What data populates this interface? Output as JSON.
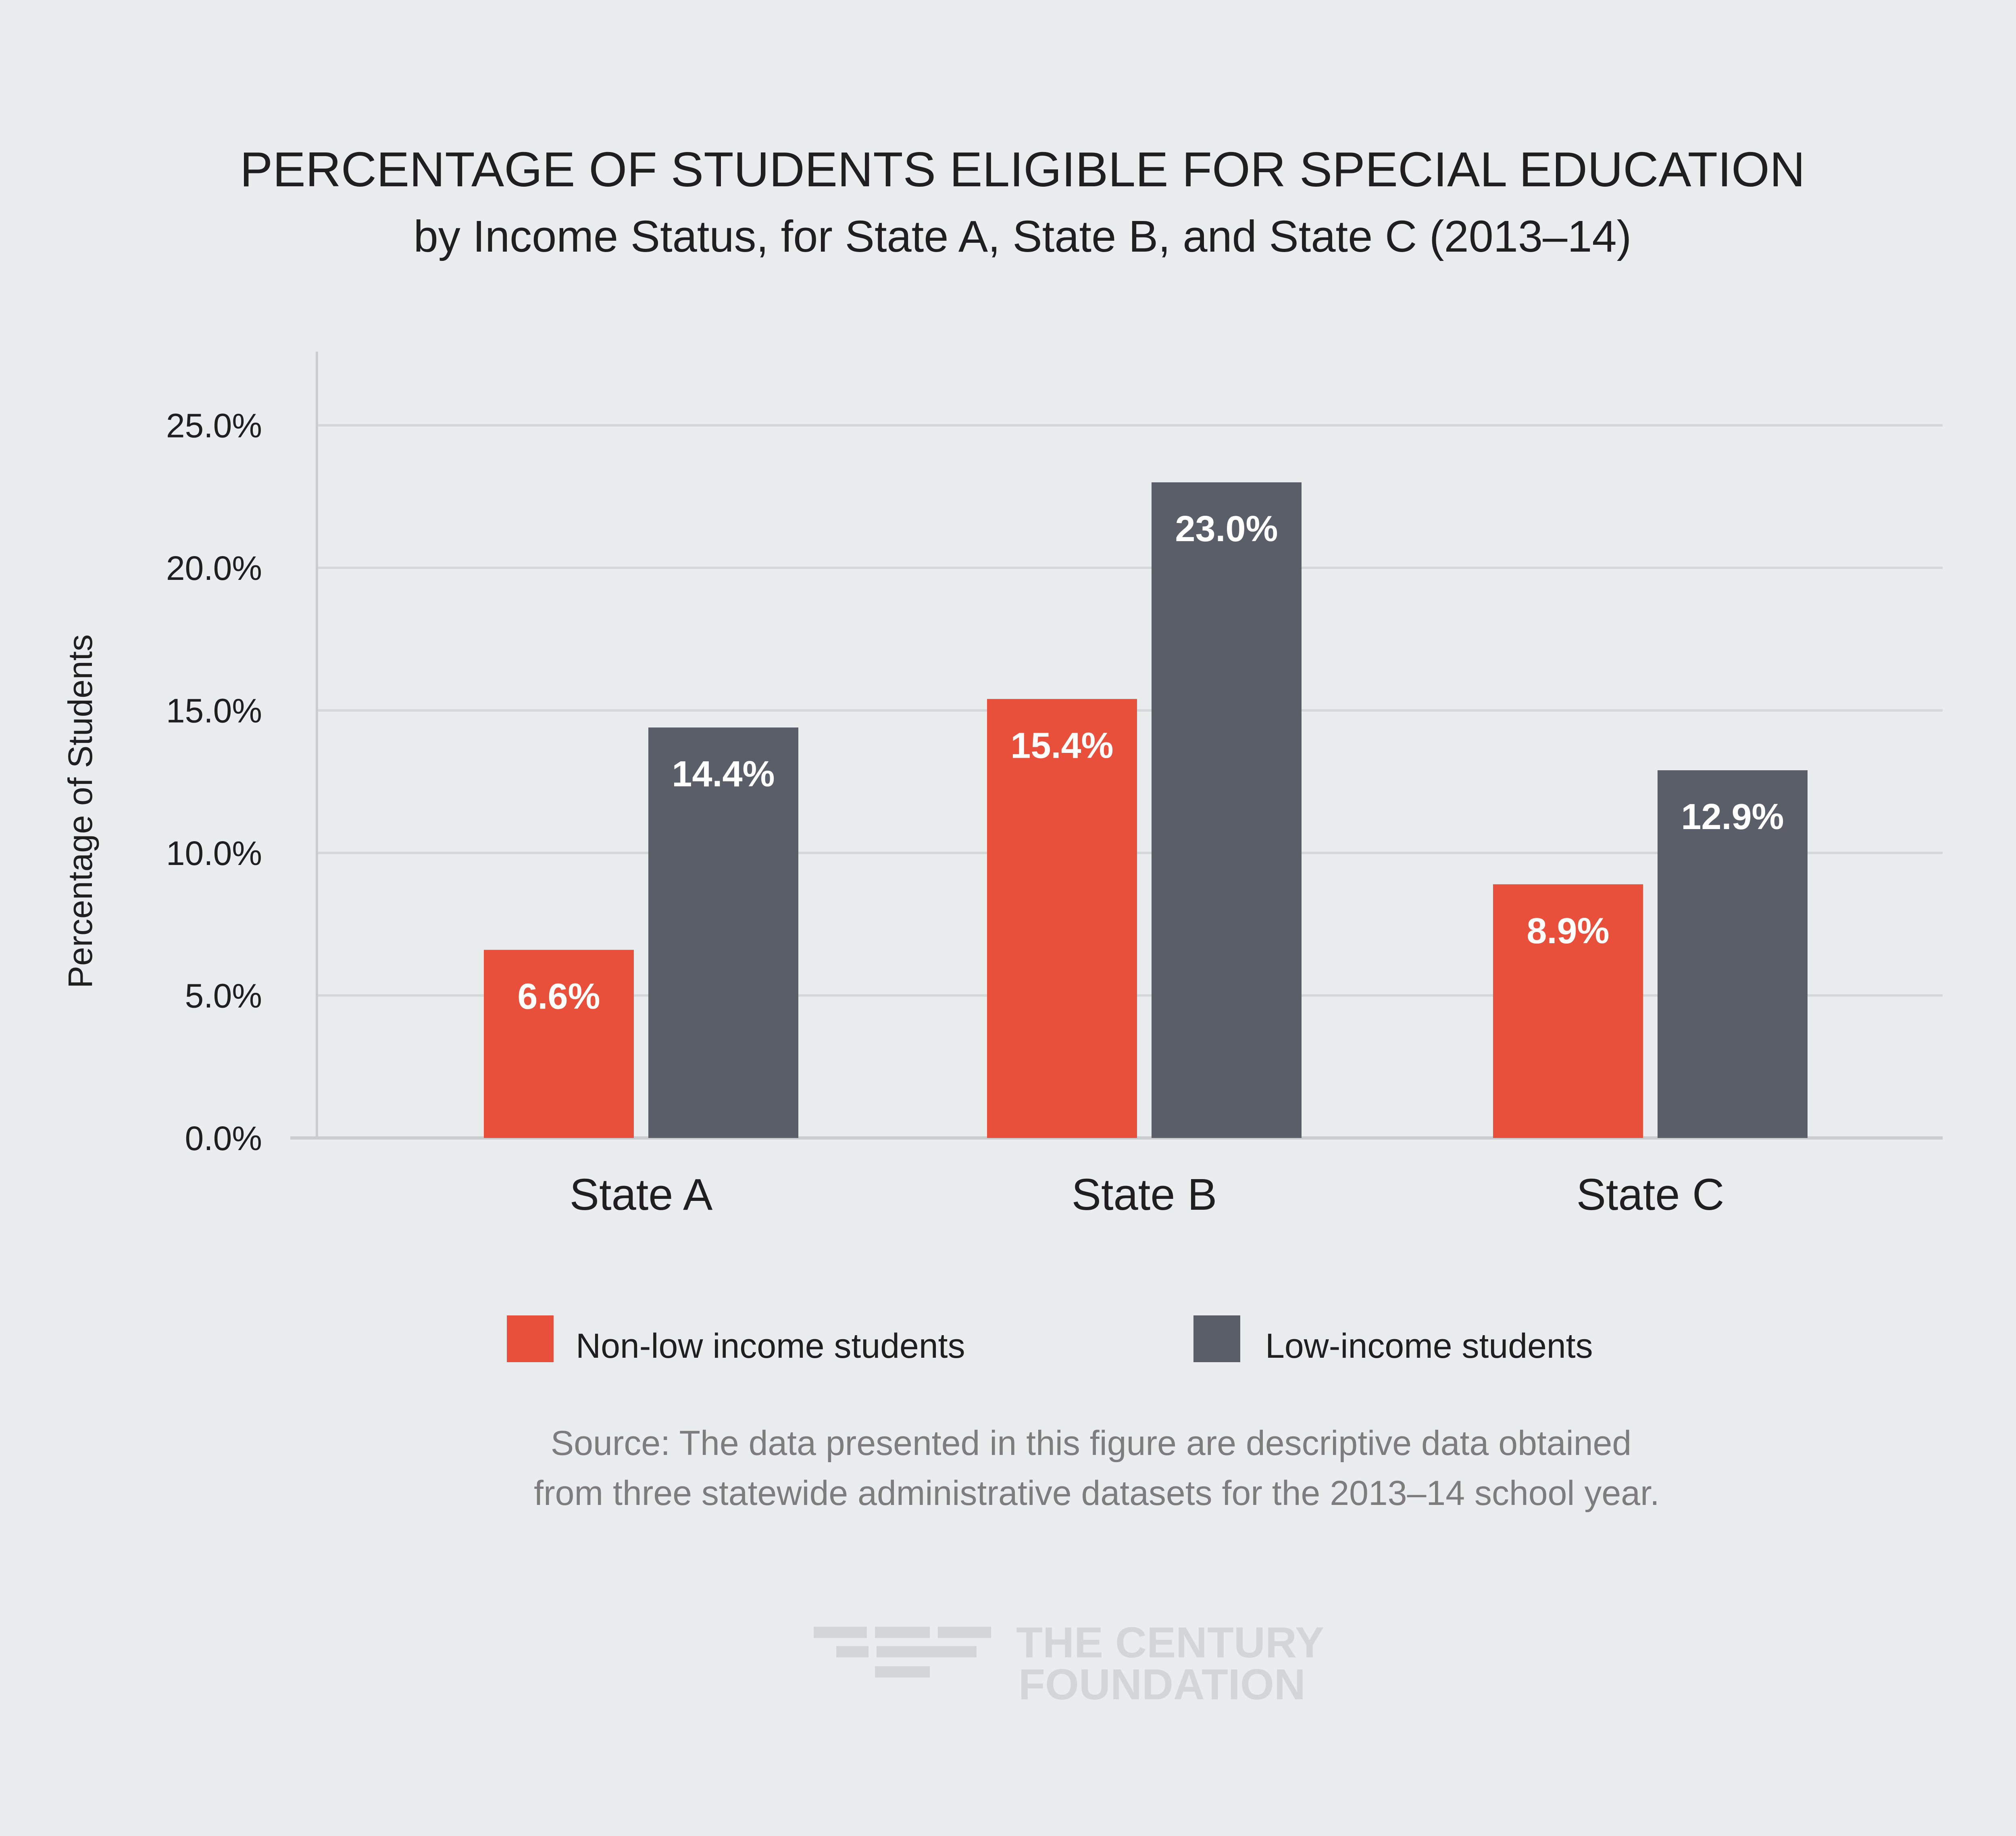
{
  "chart_data": {
    "type": "bar",
    "title": "PERCENTAGE OF STUDENTS ELIGIBLE FOR SPECIAL EDUCATION",
    "subtitle": "by Income Status, for State A, State B, and State C (2013–14)",
    "xlabel": "",
    "ylabel": "Percentage of Students",
    "ylim": [
      0,
      27.5
    ],
    "yticks": [
      0,
      5,
      10,
      15,
      20,
      25
    ],
    "ytick_labels": [
      "0.0%",
      "5.0%",
      "10.0%",
      "15.0%",
      "20.0%",
      "25.0%"
    ],
    "grid": true,
    "categories": [
      "State A",
      "State B",
      "State C"
    ],
    "series": [
      {
        "name": "Non-low income students",
        "color": "#e8503c",
        "values": [
          6.6,
          15.4,
          8.9
        ],
        "labels": [
          "6.6%",
          "15.4%",
          "8.9%"
        ]
      },
      {
        "name": "Low-income students",
        "color": "#5a5e69",
        "values": [
          14.4,
          23.0,
          12.9
        ],
        "labels": [
          "14.4%",
          "23.0%",
          "12.9%"
        ]
      }
    ],
    "legend_position": "bottom"
  },
  "source": {
    "line1": "Source: The data presented in this figure are descriptive data obtained",
    "line2": "from three statewide administrative datasets for the 2013–14 school year."
  },
  "logo": {
    "line1": "THE CENTURY",
    "line2": "FOUNDATION"
  },
  "colors": {
    "background": "#e9edee",
    "grid": "#d4d8da",
    "axis": "#c9cdcf"
  }
}
